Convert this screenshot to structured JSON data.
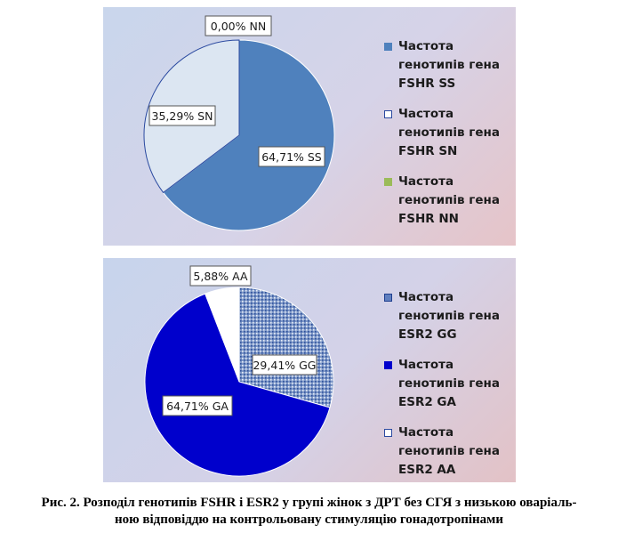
{
  "chart_data": [
    {
      "type": "pie",
      "slices": [
        {
          "name": "Частота генотипів гена FSHR SS",
          "value": 64.71,
          "label": "64,71% SS",
          "color": "#4f81bd"
        },
        {
          "name": "Частота генотипів гена FSHR SN",
          "value": 35.29,
          "label": "35,29% SN",
          "color": "#dce6f2"
        },
        {
          "name": "Частота генотипів гена FSHR NN",
          "value": 0.0,
          "label": "0,00% NN",
          "color": "#9bbb59"
        }
      ],
      "legend": [
        "Частота генотипів гена FSHR SS",
        "Частота генотипів гена FSHR SN",
        "Частота генотипів гена FSHR NN"
      ],
      "legend_position": "right"
    },
    {
      "type": "pie",
      "slices": [
        {
          "name": "Частота генотипів гена ESR2 GG",
          "value": 29.41,
          "label": "29,41% GG",
          "color": "#8aa3cf"
        },
        {
          "name": "Частота генотипів гена ESR2 GA",
          "value": 64.71,
          "label": "64,71% GA",
          "color": "#0000cc"
        },
        {
          "name": "Частота генотипів гена ESR2 AA",
          "value": 5.88,
          "label": "5,88% AA",
          "color": "#ffffff"
        }
      ],
      "legend": [
        "Частота генотипів гена ESR2 GG",
        "Частота генотипів гена ESR2 GA",
        "Частота генотипів гена ESR2 AA"
      ],
      "legend_position": "right"
    }
  ],
  "legend_1": {
    "items": [
      {
        "line1": "Частота",
        "line2": "генотипів гена",
        "line3": "FSHR SS"
      },
      {
        "line1": "Частота",
        "line2": "генотипів гена",
        "line3": "FSHR SN"
      },
      {
        "line1": "Частота",
        "line2": "генотипів гена",
        "line3": "FSHR NN"
      }
    ]
  },
  "legend_2": {
    "items": [
      {
        "line1": "Частота",
        "line2": "генотипів гена",
        "line3": "ESR2 GG"
      },
      {
        "line1": "Частота",
        "line2": "генотипів гена",
        "line3": "ESR2 GA"
      },
      {
        "line1": "Частота",
        "line2": "генотипів гена",
        "line3": "ESR2 AA"
      }
    ]
  },
  "caption": {
    "line1": "Рис. 2. Розподіл генотипів FSHR і ESR2 у групі жінок з ДРТ без СГЯ з низькою оваріаль-",
    "line2": "ною відповіддю на контрольовану стимуляцію гонадотропінами"
  }
}
